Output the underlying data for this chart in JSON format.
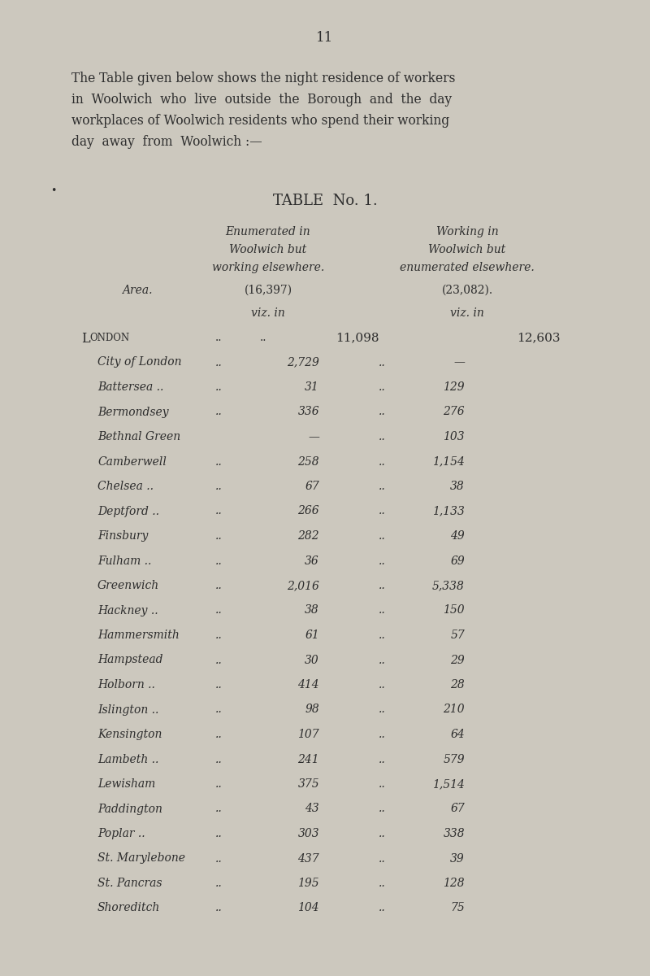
{
  "page_number": "11",
  "intro_lines": [
    "The Table given below shows the night residence of workers",
    "in  Woolwich  who  live  outside  the  Borough  and  the  day",
    "workplaces of Woolwich residents who spend their working",
    "day  away  from  Woolwich :—"
  ],
  "table_title": "TABLE  No. 1.",
  "col_header_1": [
    "Enumerated in",
    "Woolwich but",
    "working elsewhere."
  ],
  "col_header_2": [
    "Working in",
    "Woolwich but",
    "enumerated elsewhere."
  ],
  "area_label": "Area.",
  "col1_sub": "(16,397)",
  "col2_sub": "(23,082).",
  "viz_in": "viz. in",
  "background_color": "#ccc8be",
  "text_color": "#2d2d2d",
  "rows": [
    {
      "area": "London",
      "dots1": "..",
      "dots2": "..",
      "val1": "11,098",
      "val2": "12,603",
      "london": true
    },
    {
      "area": "City of London",
      "dots1": "..",
      "dots2": "..",
      "val1": "2,729",
      "val2": "—"
    },
    {
      "area": "Battersea ..",
      "dots1": "..",
      "dots2": "..",
      "val1": "31",
      "val2": "129"
    },
    {
      "area": "Bermondsey",
      "dots1": "..",
      "dots2": "..",
      "val1": "336",
      "val2": "276"
    },
    {
      "area": "Bethnal Green",
      "dots1": "",
      "dots2": "..",
      "val1": "—",
      "val2": "103"
    },
    {
      "area": "Camberwell",
      "dots1": "..",
      "dots2": "..",
      "val1": "258",
      "val2": "1,154"
    },
    {
      "area": "Chelsea ..",
      "dots1": "..",
      "dots2": "..",
      "val1": "67",
      "val2": "38"
    },
    {
      "area": "Deptford ..",
      "dots1": "..",
      "dots2": "..",
      "val1": "266",
      "val2": "1,133"
    },
    {
      "area": "Finsbury",
      "dots1": "..",
      "dots2": "..",
      "val1": "282",
      "val2": "49"
    },
    {
      "area": "Fulham ..",
      "dots1": "..",
      "dots2": ". ..",
      "val1": "36",
      "val2": "69"
    },
    {
      "area": "Greenwich",
      "dots1": "..",
      "dots2": "..",
      "val1": "2,016",
      "val2": "5,338"
    },
    {
      "area": "Hackney ..",
      "dots1": "..",
      "dots2": "..",
      "val1": "38",
      "val2": "150"
    },
    {
      "area": "Hammersmith",
      "dots1": "..",
      "dots2": "..",
      "val1": "61",
      "val2": "57"
    },
    {
      "area": "Hampstead",
      "dots1": "..",
      "dots2": "..",
      "val1": "30",
      "val2": "29"
    },
    {
      "area": "Holborn ..",
      "dots1": "..",
      "dots2": "..",
      "val1": "414",
      "val2": "28"
    },
    {
      "area": "Islington ..",
      "dots1": "..",
      "dots2": "..",
      "val1": "98",
      "val2": "210"
    },
    {
      "area": "Kensington",
      "dots1": "..",
      "dots2": "..",
      "val1": "107",
      "val2": "64"
    },
    {
      "area": "Lambeth ..",
      "dots1": "..",
      "dots2": "..",
      "val1": "241",
      "val2": "579"
    },
    {
      "area": "Lewisham",
      "dots1": "..",
      "dots2": "..",
      "val1": "375",
      "val2": "1,514"
    },
    {
      "area": "Paddington",
      "dots1": "..",
      "dots2": "..",
      "val1": "43",
      "val2": "67"
    },
    {
      "area": "Poplar ..",
      "dots1": "..",
      "dots2": "..",
      "val1": "303",
      "val2": "338"
    },
    {
      "area": "St. Marylebone",
      "dots1": "..",
      "dots2": "..",
      "val1": "437",
      "val2": "39"
    },
    {
      "area": "St. Pancras",
      "dots1": "..",
      "dots2": "..",
      "val1": "195",
      "val2": "128"
    },
    {
      "area": "Shoreditch",
      "dots1": "..",
      "dots2": "..",
      "val1": "104",
      "val2": "75"
    }
  ]
}
